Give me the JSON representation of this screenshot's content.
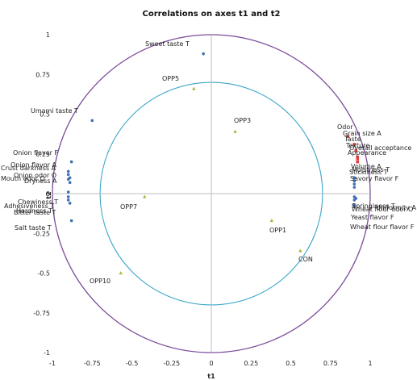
{
  "chart_data": {
    "type": "scatter",
    "title": "Correlations on axes t1 and t2",
    "xlabel": "t1",
    "ylabel": "t2",
    "xlim": [
      -1,
      1
    ],
    "ylim": [
      -1,
      1
    ],
    "xticks": [
      "-1",
      "-0.75",
      "-0.5",
      "-0.25",
      "0",
      "0.25",
      "0.5",
      "0.75",
      "1"
    ],
    "yticks": [
      "-1",
      "-0.75",
      "-0.5",
      "-0.25",
      "0",
      "0.25",
      "0.5",
      "0.75",
      "1"
    ],
    "circles": [
      {
        "radius": 1.0,
        "color": "#7b4b9a"
      },
      {
        "radius": 0.7,
        "color": "#3aa6c8"
      }
    ],
    "series": [
      {
        "marker": "circle",
        "color": "#3d6fb6",
        "points": [
          {
            "label": "Sweet taste T",
            "x": -0.05,
            "y": 0.88
          },
          {
            "label": "Umami taste T",
            "x": -0.75,
            "y": 0.46
          },
          {
            "label": "Onion flavor F",
            "x": -0.88,
            "y": 0.2
          },
          {
            "label": "Onion flavor A",
            "x": -0.9,
            "y": 0.14
          },
          {
            "label": "Crust darkness A",
            "x": -0.9,
            "y": 0.12
          },
          {
            "label": "Onion odor O",
            "x": -0.89,
            "y": 0.1
          },
          {
            "label": "Mouth odor O",
            "x": -0.9,
            "y": 0.09
          },
          {
            "label": "Dryness A",
            "x": -0.89,
            "y": 0.07
          },
          {
            "label": "Chewiness T",
            "x": -0.9,
            "y": 0.01
          },
          {
            "label": "Adhesiveness T",
            "x": -0.9,
            "y": -0.02
          },
          {
            "label": "Hardness T",
            "x": -0.9,
            "y": -0.04
          },
          {
            "label": "Bitter taste T",
            "x": -0.89,
            "y": -0.06
          },
          {
            "label": "Salt taste T",
            "x": -0.88,
            "y": -0.17
          },
          {
            "label": "Volume A",
            "x": 0.9,
            "y": 0.1
          },
          {
            "label": "Moistness T",
            "x": 0.9,
            "y": 0.08
          },
          {
            "label": "Stickiness T",
            "x": 0.9,
            "y": 0.06
          },
          {
            "label": "Savory flavor F",
            "x": 0.9,
            "y": 0.04
          },
          {
            "label": "Springiness T",
            "x": 0.9,
            "y": -0.02
          },
          {
            "label": "Uniformity A",
            "x": 0.91,
            "y": -0.03
          },
          {
            "label": "Wheat flour odor O",
            "x": 0.9,
            "y": -0.04
          },
          {
            "label": "Yeast flavor F",
            "x": 0.9,
            "y": -0.07
          },
          {
            "label": "Wheat flour flavor F",
            "x": 0.9,
            "y": -0.08
          }
        ]
      },
      {
        "marker": "square",
        "color": "#e03c3c",
        "points": [
          {
            "label": "Odor",
            "x": 0.86,
            "y": 0.36
          },
          {
            "label": "Grain size A",
            "x": 0.9,
            "y": 0.31
          },
          {
            "label": "Taste",
            "x": 0.91,
            "y": 0.27
          },
          {
            "label": "Texture",
            "x": 0.92,
            "y": 0.23
          },
          {
            "label": "Overall acceptance",
            "x": 0.92,
            "y": 0.22
          },
          {
            "label": "Appearance",
            "x": 0.92,
            "y": 0.2
          }
        ]
      },
      {
        "marker": "triangle",
        "color": "#a9b335",
        "points": [
          {
            "label": "OPP5",
            "x": -0.11,
            "y": 0.66
          },
          {
            "label": "OPP3",
            "x": 0.15,
            "y": 0.39
          },
          {
            "label": "OPP7",
            "x": -0.42,
            "y": -0.02
          },
          {
            "label": "OPP1",
            "x": 0.38,
            "y": -0.17
          },
          {
            "label": "CON",
            "x": 0.56,
            "y": -0.36
          },
          {
            "label": "OPP10",
            "x": -0.57,
            "y": -0.5
          }
        ]
      }
    ]
  }
}
